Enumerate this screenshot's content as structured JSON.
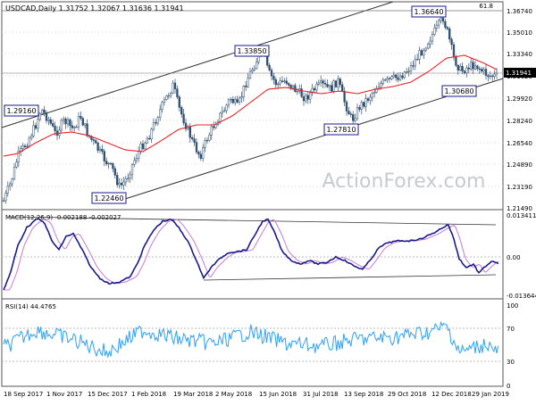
{
  "header": {
    "price_title": "USDCAD,Daily  1.31752  1.32067  1.31636  1.31941",
    "corner_value": "61.8"
  },
  "watermark": "ActionForex.com",
  "price_axis": {
    "ticks": [
      "1.36740",
      "1.35010",
      "1.33340",
      "1.31620",
      "1.29920",
      "1.28240",
      "1.26540",
      "1.24890",
      "1.23190",
      "1.21490"
    ],
    "current": "1.31941"
  },
  "annotations": [
    {
      "text": "1.36640"
    },
    {
      "text": "1.33850"
    },
    {
      "text": "1.29160"
    },
    {
      "text": "1.27810"
    },
    {
      "text": "1.30680"
    },
    {
      "text": "1.22460"
    }
  ],
  "macd": {
    "title": "MACD(12,26,9) -0.002188 -0.002027",
    "ticks": [
      "0.013411",
      "0.00",
      "-0.013644"
    ]
  },
  "rsi": {
    "title": "RSI(14) 44.4765",
    "ticks": [
      "100",
      "70",
      "30",
      "0"
    ]
  },
  "time_axis": {
    "ticks": [
      "18 Sep 2017",
      "1 Nov 2017",
      "15 Dec 2017",
      "1 Feb 2018",
      "19 Mar 2018",
      "2 May 2018",
      "15 Jun 2018",
      "31 Jul 2018",
      "13 Sep 2018",
      "29 Oct 2018",
      "12 Dec 2018",
      "29 Jan 2019"
    ]
  },
  "colors": {
    "candle": "#2f4f6f",
    "sma": "#e8232a",
    "macd_line": "#1a1a8c",
    "signal_line": "#c87bd0",
    "rsi_line": "#2aa0ff",
    "channel": "#333333",
    "grid": "#c8c8c8"
  }
}
